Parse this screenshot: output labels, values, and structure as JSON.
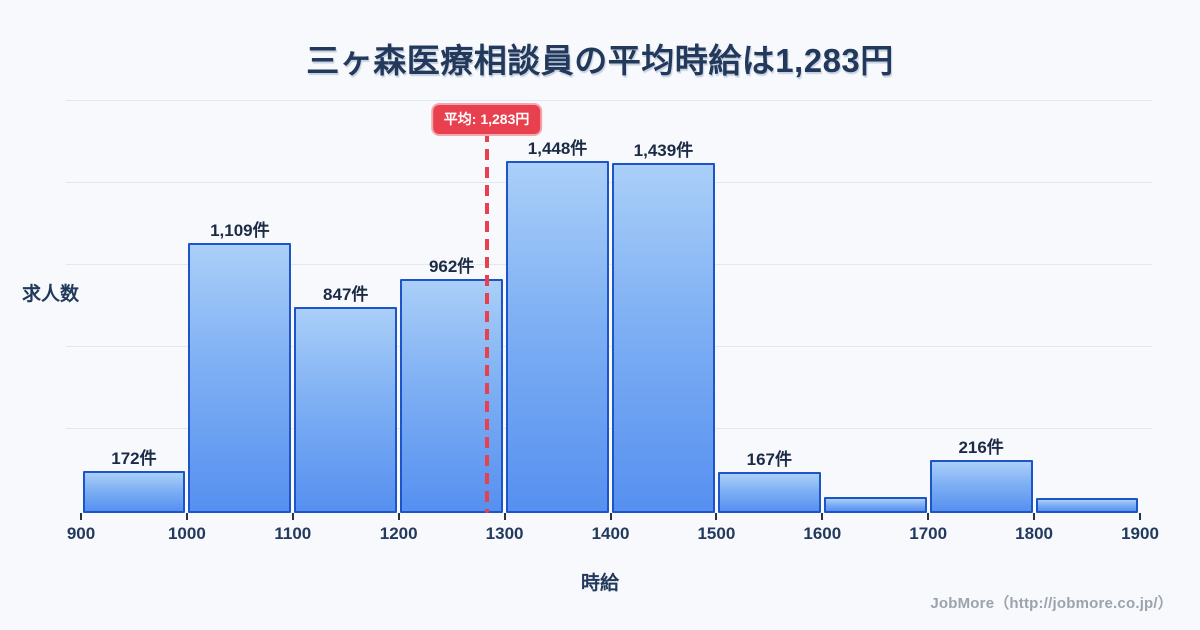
{
  "title": "三ヶ森医療相談員の平均時給は1,283円",
  "average": {
    "label": "平均: 1,283円",
    "value": 1283
  },
  "chart_data": {
    "type": "bar",
    "subtype": "histogram",
    "title": "三ヶ森医療相談員の平均時給は1,283円",
    "xlabel": "時給",
    "ylabel": "求人数",
    "x_ticks": [
      "900",
      "1000",
      "1100",
      "1200",
      "1300",
      "1400",
      "1500",
      "1600",
      "1700",
      "1800",
      "1900"
    ],
    "bin_edges": [
      900,
      1000,
      1100,
      1200,
      1300,
      1400,
      1500,
      1600,
      1700,
      1800,
      1900
    ],
    "categories": [
      "900-1000",
      "1000-1100",
      "1100-1200",
      "1200-1300",
      "1300-1400",
      "1400-1500",
      "1500-1600",
      "1600-1700",
      "1700-1800",
      "1800-1900"
    ],
    "values": [
      172,
      1109,
      847,
      962,
      1448,
      1439,
      167,
      65,
      216,
      62
    ],
    "bar_labels": [
      "172件",
      "1,109件",
      "847件",
      "962件",
      "1,448件",
      "1,439件",
      "167件",
      "",
      "216件",
      ""
    ],
    "average_line": {
      "x": 1283,
      "label": "平均: 1,283円"
    },
    "xlim": [
      900,
      1900
    ],
    "ylim": [
      0,
      1500
    ],
    "grid": true,
    "legend": "none"
  },
  "footer": {
    "credit": "JobMore（http://jobmore.co.jp/）"
  },
  "colors": {
    "background": "#f7f9fc",
    "title_navy": "#22395c",
    "bar_fill_top": "#aacff8",
    "bar_fill_bottom": "#5690f0",
    "bar_border": "#1d55c9",
    "average_red": "#e8404e",
    "label_dark": "#1c2b45",
    "gridline": "#e3e8f0",
    "footer_gray": "#9ca3ad"
  }
}
